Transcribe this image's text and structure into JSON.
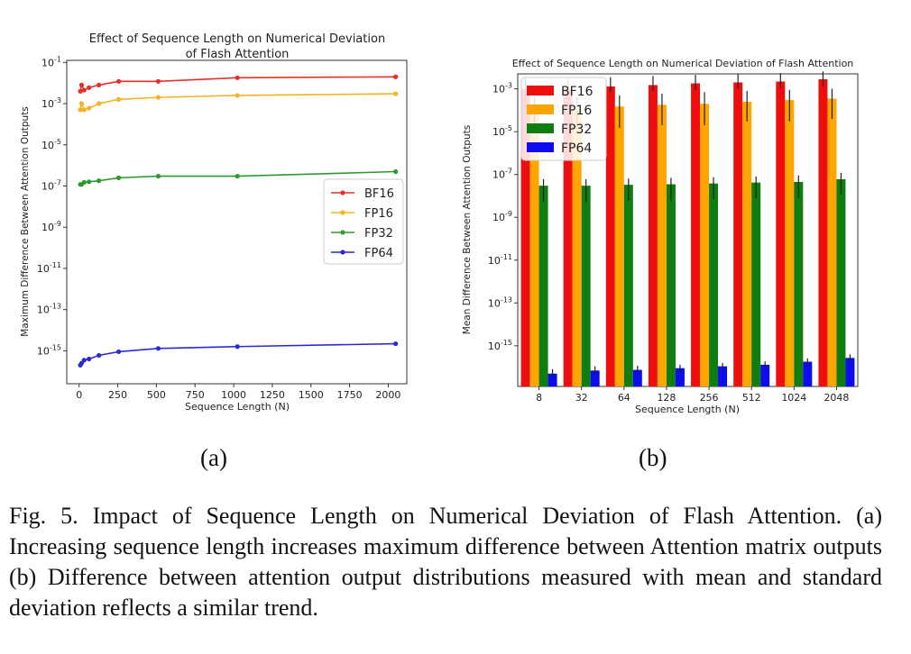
{
  "chart_data": [
    {
      "type": "line",
      "title": "Effect of Sequence Length on Numerical Deviation of Flash Attention",
      "title_lines": [
        "Effect of Sequence Length on Numerical Deviation",
        "of Flash Attention"
      ],
      "xlabel": "Sequence Length (N)",
      "ylabel": "Maximum Difference Between Attention Outputs",
      "yscale": "log",
      "xlim": [
        -80,
        2120
      ],
      "ylim_exp": [
        -16.6,
        -0.9
      ],
      "x_ticks": [
        0,
        250,
        500,
        750,
        1000,
        1250,
        1500,
        1750,
        2000
      ],
      "y_tick_labels": [
        "10^-1",
        "10^-3",
        "10^-5",
        "10^-7",
        "10^-9",
        "10^-11",
        "10^-13",
        "10^-15"
      ],
      "y_tick_exps": [
        -1,
        -3,
        -5,
        -7,
        -9,
        -11,
        -13,
        -15
      ],
      "legend_position": "center-right",
      "grid": false,
      "x": [
        8,
        16,
        32,
        64,
        128,
        256,
        512,
        1024,
        2048
      ],
      "series": [
        {
          "name": "BF16",
          "color": "#e8302a",
          "values": [
            0.004,
            0.008,
            0.0045,
            0.006,
            0.008,
            0.012,
            0.012,
            0.018,
            0.02
          ]
        },
        {
          "name": "FP16",
          "color": "#f5b324",
          "values": [
            0.0005,
            0.001,
            0.0005,
            0.0006,
            0.001,
            0.0016,
            0.002,
            0.0025,
            0.003
          ]
        },
        {
          "name": "FP32",
          "color": "#2e9a2e",
          "values": [
            1.2e-07,
            1.2e-07,
            1.5e-07,
            1.6e-07,
            1.8e-07,
            2.5e-07,
            3e-07,
            3e-07,
            5e-07
          ]
        },
        {
          "name": "FP64",
          "color": "#2b2bd6",
          "values": [
            2e-16,
            2.5e-16,
            3.5e-16,
            4e-16,
            6e-16,
            9e-16,
            1.3e-15,
            1.6e-15,
            2.2e-15
          ]
        }
      ]
    },
    {
      "type": "bar",
      "title": "Effect of Sequence Length on Numerical Deviation of Flash Attention",
      "xlabel": "Sequence Length (N)",
      "ylabel": "Mean Difference Between Attention Outputs",
      "yscale": "log",
      "ylim_exp": [
        -16.9,
        -2.3
      ],
      "y_tick_labels": [
        "10^-3",
        "10^-5",
        "10^-7",
        "10^-9",
        "10^-11",
        "10^-13",
        "10^-15"
      ],
      "y_tick_exps": [
        -3,
        -5,
        -7,
        -9,
        -11,
        -13,
        -15
      ],
      "legend_position": "top-left",
      "grid": false,
      "categories": [
        "8",
        "32",
        "64",
        "128",
        "256",
        "512",
        "1024",
        "2048"
      ],
      "series": [
        {
          "name": "BF16",
          "color": "#ee0e0e",
          "values": [
            0.001,
            0.001,
            0.0013,
            0.0015,
            0.0018,
            0.002,
            0.0022,
            0.0028
          ],
          "err_lo": [
            0.0005,
            0.0005,
            0.0007,
            0.0008,
            0.0009,
            0.001,
            0.0011,
            0.0013
          ],
          "err_hi": [
            0.003,
            0.003,
            0.0035,
            0.004,
            0.0045,
            0.005,
            0.0055,
            0.0065
          ]
        },
        {
          "name": "FP16",
          "color": "#ffa500",
          "values": [
            0.0001,
            0.0001,
            0.00015,
            0.00018,
            0.0002,
            0.00025,
            0.0003,
            0.00035
          ],
          "err_lo": [
            1e-05,
            1e-05,
            1.5e-05,
            2e-05,
            2e-05,
            3e-05,
            3e-05,
            4e-05
          ],
          "err_hi": [
            0.0004,
            0.0004,
            0.0005,
            0.0006,
            0.0007,
            0.0008,
            0.0009,
            0.001
          ]
        },
        {
          "name": "FP32",
          "color": "#0f7d0f",
          "values": [
            3e-08,
            3e-08,
            3.3e-08,
            3.5e-08,
            3.8e-08,
            4.2e-08,
            4.5e-08,
            6e-08
          ],
          "err_lo": [
            5e-09,
            5e-09,
            6e-09,
            6e-09,
            7e-09,
            8e-09,
            8e-09,
            1.2e-08
          ],
          "err_hi": [
            6e-08,
            6e-08,
            6.5e-08,
            7e-08,
            7.5e-08,
            8e-08,
            9e-08,
            1.2e-07
          ]
        },
        {
          "name": "FP64",
          "color": "#0c0cee",
          "values": [
            5e-17,
            7e-17,
            7.5e-17,
            9e-17,
            1.1e-16,
            1.3e-16,
            1.8e-16,
            2.7e-16
          ],
          "err_lo": [
            3e-17,
            4.5e-17,
            5e-17,
            6e-17,
            7e-17,
            8e-17,
            1.1e-16,
            1.6e-16
          ],
          "err_hi": [
            8e-17,
            1.1e-16,
            1.15e-16,
            1.3e-16,
            1.6e-16,
            1.9e-16,
            2.6e-16,
            4e-16
          ]
        }
      ]
    }
  ],
  "labels": {
    "a": "(a)",
    "b": "(b)"
  },
  "caption": "Fig. 5.  Impact of Sequence Length on Numerical Deviation of Flash Attention. (a) Increasing sequence length increases maximum difference between Attention matrix outputs (b) Difference between attention output distributions measured with mean and standard deviation reflects a similar trend."
}
